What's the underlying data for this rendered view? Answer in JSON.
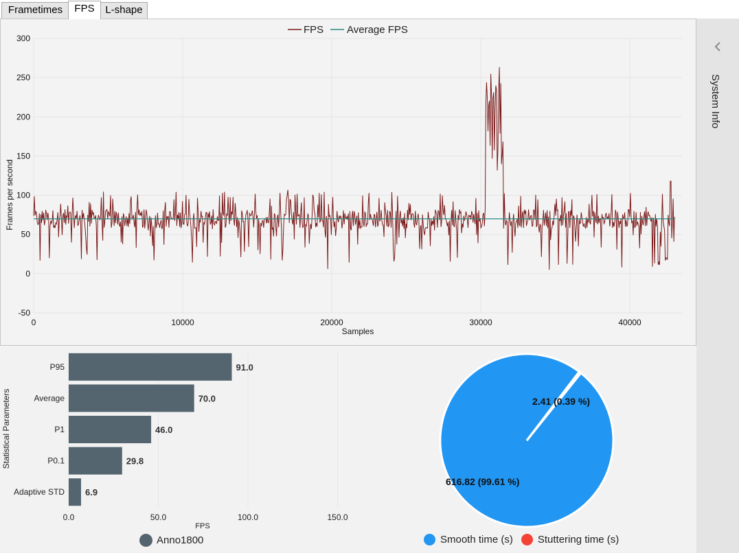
{
  "tabs": [
    {
      "label": "Frametimes",
      "active": false
    },
    {
      "label": "FPS",
      "active": true
    },
    {
      "label": "L-shape",
      "active": false
    }
  ],
  "side_panel": {
    "label": "System Info",
    "icon": "chevron-left-icon"
  },
  "fps_chart": {
    "type": "line",
    "legend": [
      "FPS",
      "Average FPS"
    ],
    "xlabel": "Samples",
    "ylabel": "Frames per second",
    "xlim": [
      0,
      43500
    ],
    "ylim": [
      -50,
      300
    ],
    "xticks": [
      "0",
      "10000",
      "20000",
      "30000",
      "40000"
    ],
    "yticks": [
      "-50",
      "0",
      "50",
      "100",
      "150",
      "200",
      "250",
      "300"
    ],
    "average_fps": 70,
    "colors": {
      "fps": "#7b1a1a",
      "average": "#2a8a80"
    }
  },
  "stats_chart": {
    "type": "bar",
    "ylabel": "Statistical Parameters",
    "xlabel": "FPS",
    "xlim": [
      0,
      200
    ],
    "xticks": [
      "0.0",
      "50.0",
      "100.0",
      "150.0"
    ],
    "categories": [
      "P95",
      "Average",
      "P1",
      "P0.1",
      "Adaptive STD"
    ],
    "values": [
      91.0,
      70.0,
      46.0,
      29.8,
      6.9
    ],
    "value_labels": [
      "91.0",
      "70.0",
      "46.0",
      "29.8",
      "6.9"
    ],
    "legend": "Anno1800",
    "colors": {
      "bar": "#546570"
    }
  },
  "stutter_chart": {
    "type": "pie",
    "slices": [
      {
        "label": "616.82 (99.61 %)",
        "value": 616.82,
        "color": "#2196f3"
      },
      {
        "label": "2.41 (0.39 %)",
        "value": 2.41,
        "color": "#f44336"
      }
    ],
    "legend": [
      "Smooth time (s)",
      "Stuttering time (s)"
    ]
  }
}
